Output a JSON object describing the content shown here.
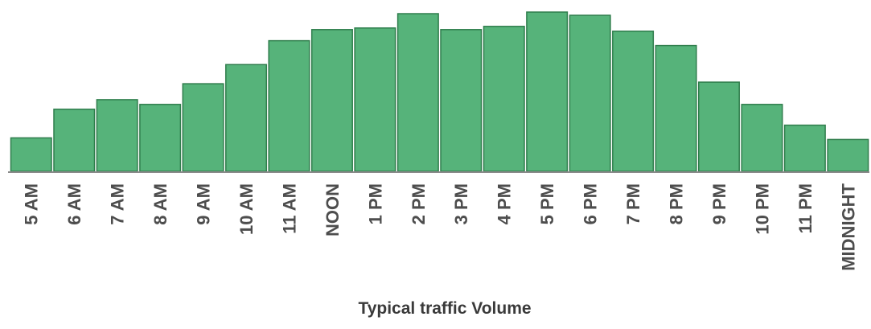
{
  "chart_data": {
    "type": "bar",
    "xlabel": "Typical traffic Volume",
    "ylabel": "",
    "categories": [
      "5 AM",
      "6 AM",
      "7 AM",
      "8 AM",
      "9 AM",
      "10 AM",
      "11 AM",
      "NOON",
      "1 PM",
      "2 PM",
      "3 PM",
      "4 PM",
      "5 PM",
      "6 PM",
      "7 PM",
      "8 PM",
      "9 PM",
      "10 PM",
      "11 PM",
      "MIDNIGHT"
    ],
    "values": [
      21,
      39,
      45,
      42,
      55,
      67,
      82,
      89,
      90,
      99,
      89,
      91,
      100,
      98,
      88,
      79,
      56,
      42,
      29,
      20
    ],
    "ylim": [
      0,
      100
    ],
    "grid": false,
    "colors": {
      "bar_fill": "#56b37a",
      "bar_stroke": "#2f7d4c",
      "baseline": "#8a8a8a"
    }
  }
}
